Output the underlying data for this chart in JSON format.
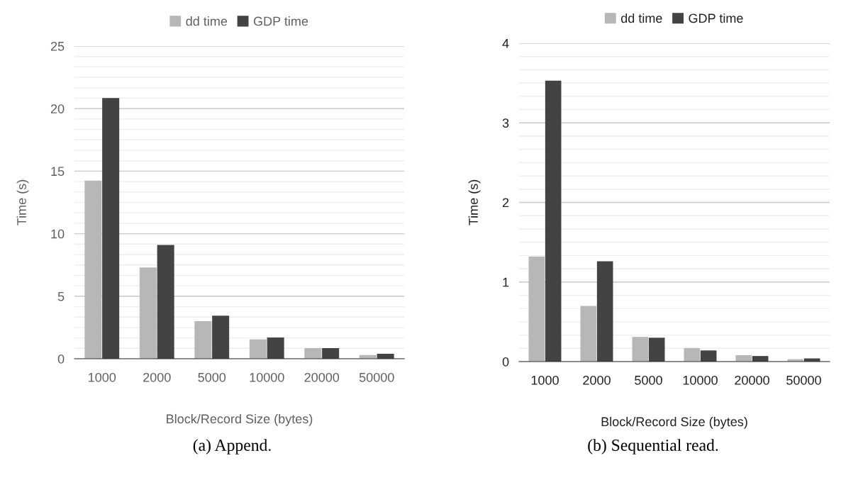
{
  "chart_data": [
    {
      "type": "bar",
      "xlabel": "Block/Record Size (bytes)",
      "ylabel": "Time (s)",
      "categories": [
        "1000",
        "2000",
        "5000",
        "10000",
        "20000",
        "50000"
      ],
      "series": [
        {
          "name": "dd time",
          "color": "#b7b7b7",
          "values": [
            14.25,
            7.3,
            3.0,
            1.55,
            0.85,
            0.3
          ]
        },
        {
          "name": "GDP time",
          "color": "#434343",
          "values": [
            20.85,
            9.1,
            3.45,
            1.7,
            0.85,
            0.4
          ]
        }
      ],
      "ylim": [
        0,
        25
      ],
      "yticks": [
        0,
        5,
        10,
        15,
        20,
        25
      ],
      "grid": "y",
      "legend": "top",
      "annotations": [
        "(a) Append."
      ]
    },
    {
      "type": "bar",
      "xlabel": "Block/Record Size (bytes)",
      "ylabel": "Time (s)",
      "categories": [
        "1000",
        "2000",
        "5000",
        "10000",
        "20000",
        "50000"
      ],
      "series": [
        {
          "name": "dd time",
          "color": "#b7b7b7",
          "values": [
            1.32,
            0.7,
            0.31,
            0.17,
            0.08,
            0.03
          ]
        },
        {
          "name": "GDP time",
          "color": "#434343",
          "values": [
            3.53,
            1.26,
            0.3,
            0.14,
            0.07,
            0.04
          ]
        }
      ],
      "ylim": [
        0,
        4
      ],
      "yticks": [
        0,
        1,
        2,
        3,
        4
      ],
      "grid": "y",
      "legend": "top",
      "annotations": [
        "(b) Sequential read."
      ]
    }
  ]
}
